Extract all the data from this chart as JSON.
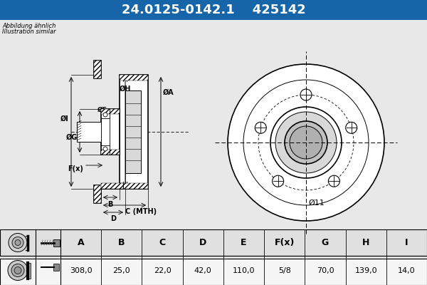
{
  "title_part": "24.0125-0142.1",
  "title_code": "425142",
  "header_bg": "#1565a8",
  "header_text_color": "#ffffff",
  "body_bg": "#e8e8e8",
  "table_bg": "#e0e0e0",
  "table_row_bg": "#f5f5f5",
  "note_line1": "Abbildung ähnlich",
  "note_line2": "Illustration similar",
  "dim_label": "Ø11",
  "table_headers": [
    "A",
    "B",
    "C",
    "D",
    "E",
    "F(x)",
    "G",
    "H",
    "I"
  ],
  "table_values": [
    "308,0",
    "25,0",
    "22,0",
    "42,0",
    "110,0",
    "5/8",
    "70,0",
    "139,0",
    "14,0"
  ],
  "figsize": [
    6.0,
    4.0
  ],
  "dpi": 100
}
